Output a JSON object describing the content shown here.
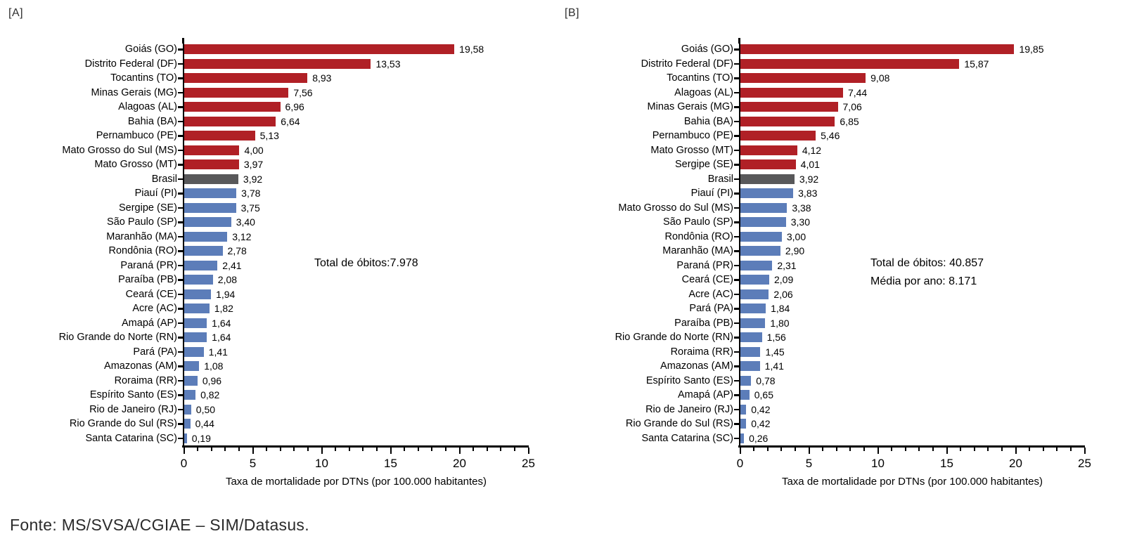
{
  "source_note": "Fonte: MS/SVSA/CGIAE – SIM/Datasus.",
  "colors": {
    "state-above-brasil": "#B02026",
    "brasil": "#58585A",
    "state-below-brasil": "#5C7DB9"
  },
  "chart_data": [
    {
      "type": "bar",
      "orientation": "horizontal",
      "panel_label": "[A]",
      "xlabel": "Taxa de mortalidade por DTNs (por 100.000 habitantes)",
      "xlim": [
        0,
        25
      ],
      "x_ticks": [
        0,
        5,
        10,
        15,
        20,
        25
      ],
      "minor_tick_step": 1,
      "major_tick_step": 5,
      "annotation": [
        "Total de óbitos:7.978"
      ],
      "bars": [
        {
          "label": "Goiás (GO)",
          "value": 19.58,
          "display": "19,58",
          "group": "state-above-brasil"
        },
        {
          "label": "Distrito Federal (DF)",
          "value": 13.53,
          "display": "13,53",
          "group": "state-above-brasil"
        },
        {
          "label": "Tocantins (TO)",
          "value": 8.93,
          "display": "8,93",
          "group": "state-above-brasil"
        },
        {
          "label": "Minas Gerais (MG)",
          "value": 7.56,
          "display": "7,56",
          "group": "state-above-brasil"
        },
        {
          "label": "Alagoas (AL)",
          "value": 6.96,
          "display": "6,96",
          "group": "state-above-brasil"
        },
        {
          "label": "Bahia (BA)",
          "value": 6.64,
          "display": "6,64",
          "group": "state-above-brasil"
        },
        {
          "label": "Pernambuco (PE)",
          "value": 5.13,
          "display": "5,13",
          "group": "state-above-brasil"
        },
        {
          "label": "Mato Grosso do Sul (MS)",
          "value": 4.0,
          "display": "4,00",
          "group": "state-above-brasil"
        },
        {
          "label": "Mato Grosso (MT)",
          "value": 3.97,
          "display": "3,97",
          "group": "state-above-brasil"
        },
        {
          "label": "Brasil",
          "value": 3.92,
          "display": "3,92",
          "group": "brasil"
        },
        {
          "label": "Piauí (PI)",
          "value": 3.78,
          "display": "3,78",
          "group": "state-below-brasil"
        },
        {
          "label": "Sergipe (SE)",
          "value": 3.75,
          "display": "3,75",
          "group": "state-below-brasil"
        },
        {
          "label": "São Paulo (SP)",
          "value": 3.4,
          "display": "3,40",
          "group": "state-below-brasil"
        },
        {
          "label": "Maranhão (MA)",
          "value": 3.12,
          "display": "3,12",
          "group": "state-below-brasil"
        },
        {
          "label": "Rondônia (RO)",
          "value": 2.78,
          "display": "2,78",
          "group": "state-below-brasil"
        },
        {
          "label": "Paraná (PR)",
          "value": 2.41,
          "display": "2,41",
          "group": "state-below-brasil"
        },
        {
          "label": "Paraíba (PB)",
          "value": 2.08,
          "display": "2,08",
          "group": "state-below-brasil"
        },
        {
          "label": "Ceará (CE)",
          "value": 1.94,
          "display": "1,94",
          "group": "state-below-brasil"
        },
        {
          "label": "Acre (AC)",
          "value": 1.82,
          "display": "1,82",
          "group": "state-below-brasil"
        },
        {
          "label": "Amapá (AP)",
          "value": 1.64,
          "display": "1,64",
          "group": "state-below-brasil"
        },
        {
          "label": "Rio Grande do Norte (RN)",
          "value": 1.64,
          "display": "1,64",
          "group": "state-below-brasil"
        },
        {
          "label": "Pará (PA)",
          "value": 1.41,
          "display": "1,41",
          "group": "state-below-brasil"
        },
        {
          "label": "Amazonas (AM)",
          "value": 1.08,
          "display": "1,08",
          "group": "state-below-brasil"
        },
        {
          "label": "Roraima (RR)",
          "value": 0.96,
          "display": "0,96",
          "group": "state-below-brasil"
        },
        {
          "label": "Espírito Santo (ES)",
          "value": 0.82,
          "display": "0,82",
          "group": "state-below-brasil"
        },
        {
          "label": "Rio de Janeiro (RJ)",
          "value": 0.5,
          "display": "0,50",
          "group": "state-below-brasil"
        },
        {
          "label": "Rio Grande do Sul (RS)",
          "value": 0.44,
          "display": "0,44",
          "group": "state-below-brasil"
        },
        {
          "label": "Santa Catarina (SC)",
          "value": 0.19,
          "display": "0,19",
          "group": "state-below-brasil"
        }
      ]
    },
    {
      "type": "bar",
      "orientation": "horizontal",
      "panel_label": "[B]",
      "xlabel": "Taxa de mortalidade por DTNs (por 100.000 habitantes)",
      "xlim": [
        0,
        25
      ],
      "x_ticks": [
        0,
        5,
        10,
        15,
        20,
        25
      ],
      "minor_tick_step": 1,
      "major_tick_step": 5,
      "annotation": [
        "Total de óbitos: 40.857",
        "Média por ano: 8.171"
      ],
      "bars": [
        {
          "label": "Goiás (GO)",
          "value": 19.85,
          "display": "19,85",
          "group": "state-above-brasil"
        },
        {
          "label": "Distrito Federal (DF)",
          "value": 15.87,
          "display": "15,87",
          "group": "state-above-brasil"
        },
        {
          "label": "Tocantins (TO)",
          "value": 9.08,
          "display": "9,08",
          "group": "state-above-brasil"
        },
        {
          "label": "Alagoas (AL)",
          "value": 7.44,
          "display": "7,44",
          "group": "state-above-brasil"
        },
        {
          "label": "Minas Gerais (MG)",
          "value": 7.06,
          "display": "7,06",
          "group": "state-above-brasil"
        },
        {
          "label": "Bahia (BA)",
          "value": 6.85,
          "display": "6,85",
          "group": "state-above-brasil"
        },
        {
          "label": "Pernambuco (PE)",
          "value": 5.46,
          "display": "5,46",
          "group": "state-above-brasil"
        },
        {
          "label": "Mato Grosso (MT)",
          "value": 4.12,
          "display": "4,12",
          "group": "state-above-brasil"
        },
        {
          "label": "Sergipe (SE)",
          "value": 4.01,
          "display": "4,01",
          "group": "state-above-brasil"
        },
        {
          "label": "Brasil",
          "value": 3.92,
          "display": "3,92",
          "group": "brasil"
        },
        {
          "label": "Piauí (PI)",
          "value": 3.83,
          "display": "3,83",
          "group": "state-below-brasil"
        },
        {
          "label": "Mato Grosso do Sul (MS)",
          "value": 3.38,
          "display": "3,38",
          "group": "state-below-brasil"
        },
        {
          "label": "São Paulo (SP)",
          "value": 3.3,
          "display": "3,30",
          "group": "state-below-brasil"
        },
        {
          "label": "Rondônia (RO)",
          "value": 3.0,
          "display": "3,00",
          "group": "state-below-brasil"
        },
        {
          "label": "Maranhão (MA)",
          "value": 2.9,
          "display": "2,90",
          "group": "state-below-brasil"
        },
        {
          "label": "Paraná (PR)",
          "value": 2.31,
          "display": "2,31",
          "group": "state-below-brasil"
        },
        {
          "label": "Ceará (CE)",
          "value": 2.09,
          "display": "2,09",
          "group": "state-below-brasil"
        },
        {
          "label": "Acre (AC)",
          "value": 2.06,
          "display": "2,06",
          "group": "state-below-brasil"
        },
        {
          "label": "Pará (PA)",
          "value": 1.84,
          "display": "1,84",
          "group": "state-below-brasil"
        },
        {
          "label": "Paraíba (PB)",
          "value": 1.8,
          "display": "1,80",
          "group": "state-below-brasil"
        },
        {
          "label": "Rio Grande do Norte (RN)",
          "value": 1.56,
          "display": "1,56",
          "group": "state-below-brasil"
        },
        {
          "label": "Roraima (RR)",
          "value": 1.45,
          "display": "1,45",
          "group": "state-below-brasil"
        },
        {
          "label": "Amazonas (AM)",
          "value": 1.41,
          "display": "1,41",
          "group": "state-below-brasil"
        },
        {
          "label": "Espírito Santo (ES)",
          "value": 0.78,
          "display": "0,78",
          "group": "state-below-brasil"
        },
        {
          "label": "Amapá (AP)",
          "value": 0.65,
          "display": "0,65",
          "group": "state-below-brasil"
        },
        {
          "label": "Rio de Janeiro (RJ)",
          "value": 0.42,
          "display": "0,42",
          "group": "state-below-brasil"
        },
        {
          "label": "Rio Grande do Sul (RS)",
          "value": 0.42,
          "display": "0,42",
          "group": "state-below-brasil"
        },
        {
          "label": "Santa Catarina (SC)",
          "value": 0.26,
          "display": "0,26",
          "group": "state-below-brasil"
        }
      ]
    }
  ]
}
